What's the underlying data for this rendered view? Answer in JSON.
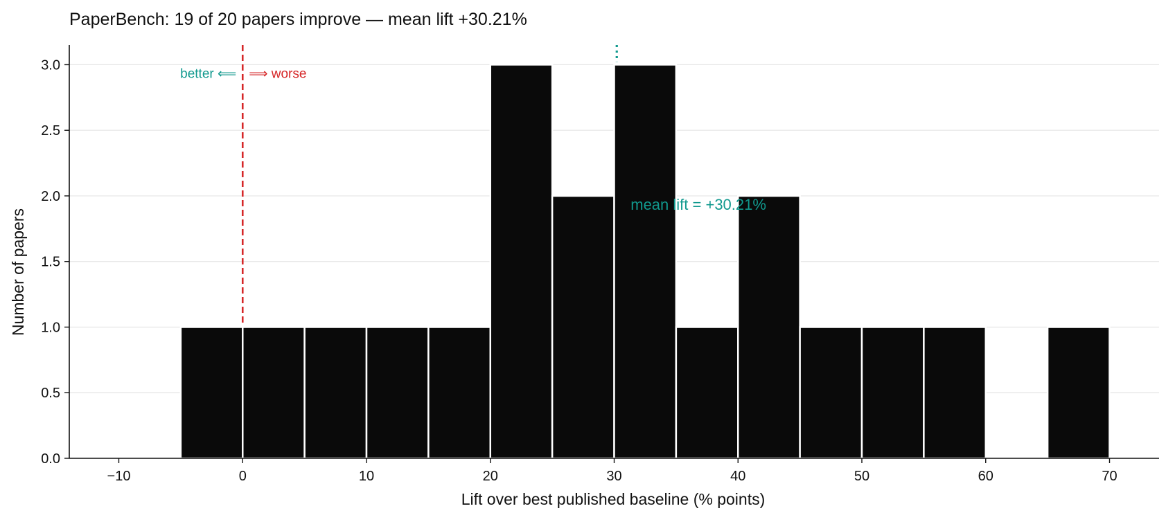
{
  "chart_data": {
    "type": "bar",
    "title": "PaperBench: 19 of 20 papers improve — mean lift +30.21%",
    "xlabel": "Lift over best published baseline (% points)",
    "ylabel": "Number of papers",
    "xlim": [
      -14,
      74
    ],
    "ylim": [
      0,
      3.15
    ],
    "x_ticks": [
      -10,
      0,
      10,
      20,
      30,
      40,
      50,
      60,
      70
    ],
    "x_tick_labels": [
      "−10",
      "0",
      "10",
      "20",
      "30",
      "40",
      "50",
      "60",
      "70"
    ],
    "y_ticks": [
      0,
      0.5,
      1,
      1.5,
      2,
      2.5,
      3
    ],
    "y_tick_labels": [
      "0.0",
      "0.5",
      "1.0",
      "1.5",
      "2.0",
      "2.5",
      "3.0"
    ],
    "grid": true,
    "bin_width": 5,
    "bins": [
      {
        "start": -5,
        "end": 0,
        "count": 1
      },
      {
        "start": 0,
        "end": 5,
        "count": 1
      },
      {
        "start": 5,
        "end": 10,
        "count": 1
      },
      {
        "start": 10,
        "end": 15,
        "count": 1
      },
      {
        "start": 15,
        "end": 20,
        "count": 1
      },
      {
        "start": 20,
        "end": 25,
        "count": 3
      },
      {
        "start": 25,
        "end": 30,
        "count": 2
      },
      {
        "start": 30,
        "end": 35,
        "count": 3
      },
      {
        "start": 35,
        "end": 40,
        "count": 1
      },
      {
        "start": 40,
        "end": 45,
        "count": 2
      },
      {
        "start": 45,
        "end": 50,
        "count": 1
      },
      {
        "start": 50,
        "end": 55,
        "count": 1
      },
      {
        "start": 55,
        "end": 60,
        "count": 1
      },
      {
        "start": 65,
        "end": 70,
        "count": 1
      }
    ],
    "reference_line": {
      "x": 0,
      "color": "#d62728",
      "style": "dashed"
    },
    "mean_line": {
      "x": 30.21,
      "color": "#11998e",
      "style": "dotted"
    },
    "annotations": {
      "better": "better ⟸",
      "worse": "⟹ worse",
      "mean": "mean lift = +30.21%"
    },
    "colors": {
      "bar": "#0a0a0a",
      "better": "#11998e",
      "worse": "#d62728",
      "mean": "#11998e"
    }
  }
}
